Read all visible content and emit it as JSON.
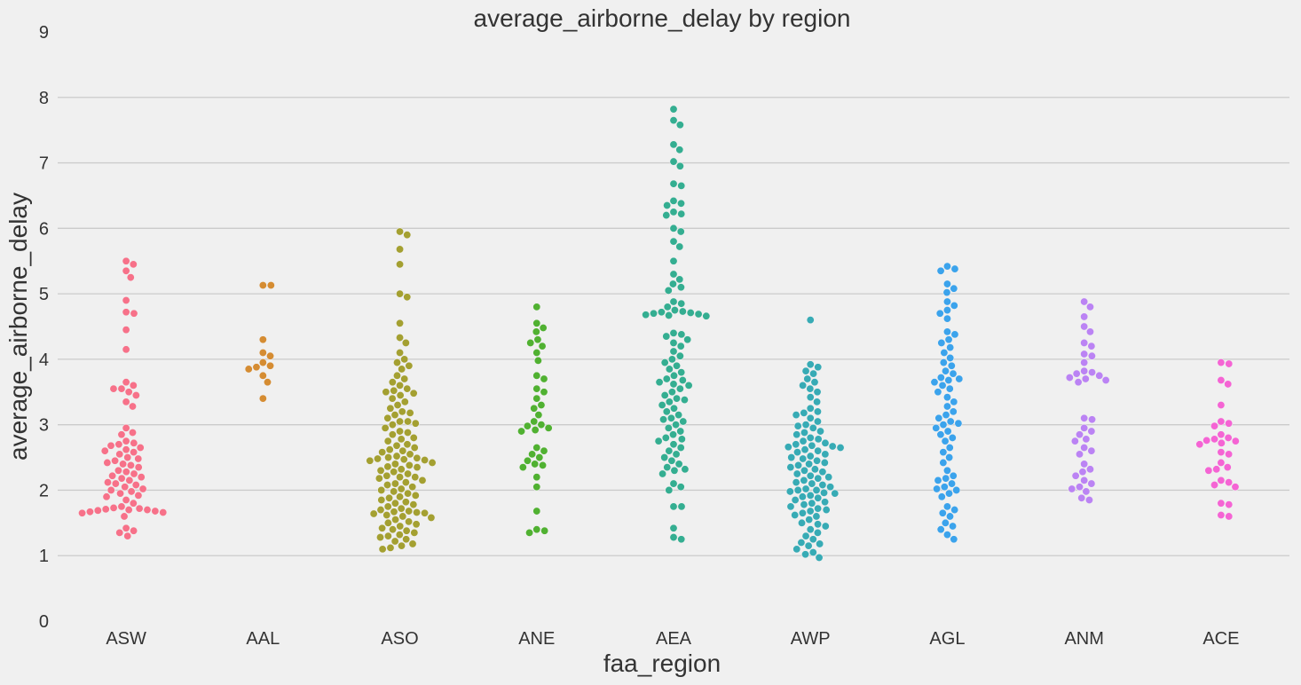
{
  "chart_data": {
    "type": "swarm",
    "title": "average_airborne_delay by region",
    "x_label": "faa_region",
    "y_label": "average_airborne_delay",
    "categories": [
      "ASW",
      "AAL",
      "ASO",
      "ANE",
      "AEA",
      "AWP",
      "AGL",
      "ANM",
      "ACE"
    ],
    "colors": [
      "#f77189",
      "#d58c32",
      "#a4a031",
      "#50b131",
      "#34ae91",
      "#37abb5",
      "#3ba3ec",
      "#bb83f4",
      "#f564d4"
    ],
    "ylim": [
      0,
      9
    ],
    "yticks": [
      0,
      1,
      2,
      3,
      4,
      5,
      6,
      7,
      8,
      9
    ],
    "grid": true,
    "values": [
      [
        5.5,
        5.45,
        5.35,
        5.25,
        4.9,
        4.72,
        4.7,
        4.45,
        4.15,
        3.65,
        3.6,
        3.55,
        3.55,
        3.5,
        3.45,
        3.35,
        3.28,
        2.95,
        2.88,
        2.85,
        2.75,
        2.72,
        2.7,
        2.68,
        2.65,
        2.62,
        2.6,
        2.58,
        2.55,
        2.5,
        2.48,
        2.45,
        2.42,
        2.4,
        2.38,
        2.35,
        2.3,
        2.28,
        2.25,
        2.22,
        2.2,
        2.18,
        2.15,
        2.12,
        2.1,
        2.08,
        2.05,
        2.02,
        2.0,
        1.98,
        1.95,
        1.92,
        1.9,
        1.85,
        1.8,
        1.75,
        1.73,
        1.72,
        1.71,
        1.7,
        1.7,
        1.69,
        1.68,
        1.67,
        1.66,
        1.65,
        1.6,
        1.42,
        1.38,
        1.35,
        1.3
      ],
      [
        5.13,
        5.13,
        4.3,
        4.1,
        4.05,
        3.95,
        3.9,
        3.88,
        3.85,
        3.75,
        3.65,
        3.4
      ],
      [
        5.95,
        5.9,
        5.68,
        5.45,
        5.0,
        4.95,
        4.55,
        4.33,
        4.25,
        4.1,
        4.0,
        3.95,
        3.9,
        3.85,
        3.75,
        3.7,
        3.65,
        3.6,
        3.55,
        3.52,
        3.5,
        3.48,
        3.45,
        3.4,
        3.35,
        3.3,
        3.25,
        3.2,
        3.18,
        3.15,
        3.1,
        3.05,
        3.05,
        3.02,
        3.0,
        2.95,
        2.9,
        2.88,
        2.85,
        2.8,
        2.78,
        2.75,
        2.7,
        2.68,
        2.65,
        2.62,
        2.6,
        2.58,
        2.55,
        2.52,
        2.5,
        2.49,
        2.48,
        2.47,
        2.46,
        2.45,
        2.42,
        2.4,
        2.38,
        2.36,
        2.35,
        2.32,
        2.3,
        2.28,
        2.25,
        2.22,
        2.2,
        2.2,
        2.18,
        2.15,
        2.12,
        2.1,
        2.08,
        2.05,
        2.02,
        2.0,
        1.98,
        1.95,
        1.92,
        1.9,
        1.88,
        1.85,
        1.82,
        1.8,
        1.78,
        1.75,
        1.72,
        1.7,
        1.68,
        1.67,
        1.66,
        1.65,
        1.64,
        1.62,
        1.6,
        1.58,
        1.55,
        1.52,
        1.5,
        1.48,
        1.45,
        1.42,
        1.4,
        1.38,
        1.35,
        1.32,
        1.3,
        1.28,
        1.25,
        1.22,
        1.18,
        1.15,
        1.12,
        1.1
      ],
      [
        4.8,
        4.55,
        4.48,
        4.42,
        4.3,
        4.25,
        4.2,
        4.1,
        3.98,
        3.75,
        3.7,
        3.55,
        3.5,
        3.4,
        3.3,
        3.25,
        3.15,
        3.05,
        3.0,
        2.98,
        2.95,
        2.92,
        2.9,
        2.65,
        2.6,
        2.55,
        2.5,
        2.45,
        2.4,
        2.38,
        2.35,
        2.2,
        2.05,
        1.68,
        1.4,
        1.38,
        1.35
      ],
      [
        7.82,
        7.65,
        7.58,
        7.28,
        7.2,
        7.02,
        6.95,
        6.68,
        6.65,
        6.42,
        6.38,
        6.35,
        6.25,
        6.22,
        6.2,
        6.0,
        5.95,
        5.8,
        5.72,
        5.5,
        5.3,
        5.22,
        5.15,
        5.1,
        5.05,
        4.88,
        4.85,
        4.8,
        4.75,
        4.73,
        4.72,
        4.71,
        4.7,
        4.69,
        4.68,
        4.67,
        4.66,
        4.4,
        4.38,
        4.35,
        4.3,
        4.25,
        4.2,
        4.12,
        4.05,
        4.0,
        3.95,
        3.9,
        3.85,
        3.8,
        3.75,
        3.7,
        3.68,
        3.65,
        3.62,
        3.6,
        3.55,
        3.5,
        3.45,
        3.4,
        3.38,
        3.35,
        3.3,
        3.25,
        3.2,
        3.15,
        3.1,
        3.08,
        3.05,
        3.0,
        2.95,
        2.9,
        2.85,
        2.8,
        2.78,
        2.75,
        2.7,
        2.65,
        2.6,
        2.55,
        2.5,
        2.45,
        2.4,
        2.35,
        2.32,
        2.3,
        2.25,
        2.1,
        2.05,
        2.0,
        1.75,
        1.75,
        1.42,
        1.28,
        1.25
      ],
      [
        4.6,
        3.92,
        3.88,
        3.82,
        3.78,
        3.7,
        3.65,
        3.6,
        3.55,
        3.5,
        3.42,
        3.35,
        3.25,
        3.2,
        3.18,
        3.15,
        3.1,
        3.05,
        3.0,
        2.98,
        2.95,
        2.9,
        2.88,
        2.85,
        2.8,
        2.78,
        2.75,
        2.72,
        2.7,
        2.68,
        2.67,
        2.66,
        2.65,
        2.62,
        2.6,
        2.58,
        2.55,
        2.52,
        2.5,
        2.48,
        2.45,
        2.42,
        2.4,
        2.38,
        2.35,
        2.32,
        2.3,
        2.28,
        2.25,
        2.22,
        2.2,
        2.18,
        2.15,
        2.12,
        2.1,
        2.08,
        2.05,
        2.02,
        2.0,
        2.0,
        1.98,
        1.96,
        1.95,
        1.92,
        1.9,
        1.88,
        1.85,
        1.82,
        1.8,
        1.78,
        1.75,
        1.72,
        1.7,
        1.68,
        1.65,
        1.62,
        1.6,
        1.55,
        1.5,
        1.48,
        1.45,
        1.4,
        1.35,
        1.3,
        1.25,
        1.2,
        1.18,
        1.15,
        1.1,
        1.05,
        1.02,
        0.97
      ],
      [
        5.42,
        5.38,
        5.35,
        5.15,
        5.08,
        5.02,
        4.88,
        4.82,
        4.75,
        4.7,
        4.62,
        4.42,
        4.38,
        4.3,
        4.25,
        4.18,
        4.1,
        4.02,
        3.95,
        3.9,
        3.82,
        3.78,
        3.72,
        3.7,
        3.68,
        3.65,
        3.6,
        3.55,
        3.5,
        3.42,
        3.35,
        3.28,
        3.2,
        3.15,
        3.1,
        3.05,
        3.02,
        3.0,
        2.95,
        2.9,
        2.85,
        2.8,
        2.75,
        2.65,
        2.58,
        2.5,
        2.42,
        2.3,
        2.22,
        2.18,
        2.15,
        2.1,
        2.05,
        2.02,
        2.0,
        1.95,
        1.9,
        1.75,
        1.7,
        1.65,
        1.6,
        1.5,
        1.45,
        1.4,
        1.32,
        1.25
      ],
      [
        4.88,
        4.8,
        4.65,
        4.5,
        4.42,
        4.25,
        4.2,
        4.08,
        4.05,
        3.95,
        3.82,
        3.8,
        3.78,
        3.75,
        3.72,
        3.7,
        3.68,
        3.65,
        3.1,
        3.08,
        2.95,
        2.9,
        2.85,
        2.78,
        2.75,
        2.65,
        2.6,
        2.55,
        2.4,
        2.32,
        2.28,
        2.22,
        2.15,
        2.1,
        2.05,
        2.02,
        1.98,
        1.88,
        1.85
      ],
      [
        3.95,
        3.93,
        3.68,
        3.62,
        3.3,
        3.05,
        3.02,
        2.98,
        2.85,
        2.8,
        2.78,
        2.76,
        2.75,
        2.72,
        2.7,
        2.58,
        2.55,
        2.42,
        2.35,
        2.32,
        2.3,
        2.15,
        2.12,
        2.08,
        2.05,
        1.8,
        1.78,
        1.62,
        1.6
      ]
    ]
  }
}
